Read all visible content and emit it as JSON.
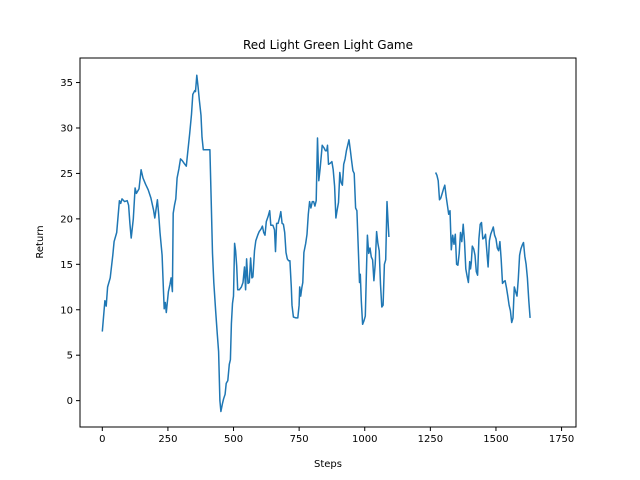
{
  "chart_data": {
    "type": "line",
    "title": "Red Light Green Light Game",
    "xlabel": "Steps",
    "ylabel": "Return",
    "xlim": [
      -85,
      1805
    ],
    "ylim": [
      -2.9,
      37.7
    ],
    "xticks": [
      0,
      250,
      500,
      750,
      1000,
      1250,
      1500,
      1750
    ],
    "yticks": [
      0,
      5,
      10,
      15,
      20,
      25,
      30,
      35
    ],
    "grid": false,
    "legend": "none",
    "series": [
      {
        "color": "#1f77b4",
        "segments": [
          [
            [
              0,
              7.6
            ],
            [
              10,
              11
            ],
            [
              15,
              10.4
            ],
            [
              20,
              12.5
            ],
            [
              30,
              13.5
            ],
            [
              40,
              16
            ],
            [
              45,
              17.5
            ],
            [
              55,
              18.5
            ],
            [
              65,
              22
            ],
            [
              70,
              21.7
            ],
            [
              75,
              22.2
            ],
            [
              85,
              21.9
            ],
            [
              95,
              22
            ],
            [
              100,
              21.5
            ],
            [
              105,
              19.5
            ],
            [
              110,
              17.9
            ],
            [
              118,
              20
            ],
            [
              125,
              23.4
            ],
            [
              130,
              22.8
            ],
            [
              140,
              23.3
            ],
            [
              148,
              25.4
            ],
            [
              155,
              24.5
            ],
            [
              165,
              23.8
            ],
            [
              175,
              23.2
            ],
            [
              185,
              22.3
            ],
            [
              195,
              21
            ],
            [
              200,
              20.1
            ],
            [
              210,
              22.1
            ],
            [
              215,
              20.5
            ],
            [
              220,
              18.5
            ],
            [
              228,
              16
            ],
            [
              233,
              12
            ],
            [
              236,
              10.1
            ],
            [
              240,
              10.8
            ],
            [
              244,
              9.7
            ],
            [
              248,
              10.9
            ],
            [
              252,
              12
            ],
            [
              258,
              12.8
            ],
            [
              262,
              13.5
            ],
            [
              267,
              12
            ],
            [
              270,
              20.6
            ],
            [
              275,
              21.5
            ],
            [
              280,
              22.2
            ],
            [
              285,
              24.5
            ],
            [
              292,
              25.5
            ],
            [
              298,
              26.6
            ],
            [
              305,
              26.4
            ],
            [
              312,
              26.1
            ],
            [
              320,
              25.8
            ],
            [
              325,
              27.2
            ],
            [
              333,
              29.4
            ],
            [
              340,
              31.5
            ],
            [
              345,
              33.7
            ],
            [
              352,
              34.1
            ],
            [
              355,
              34
            ],
            [
              360,
              35.8
            ],
            [
              365,
              34.5
            ],
            [
              370,
              33
            ],
            [
              376,
              31.4
            ],
            [
              380,
              29
            ],
            [
              385,
              27.6
            ],
            [
              390,
              27.6
            ],
            [
              400,
              27.6
            ],
            [
              410,
              27.6
            ],
            [
              415,
              22
            ],
            [
              420,
              16.2
            ],
            [
              425,
              13
            ],
            [
              432,
              9.8
            ],
            [
              438,
              7.3
            ],
            [
              443,
              5.4
            ],
            [
              448,
              0
            ],
            [
              452,
              -1.2
            ],
            [
              458,
              -0.3
            ],
            [
              462,
              0.2
            ],
            [
              468,
              0.7
            ],
            [
              472,
              1.9
            ],
            [
              478,
              2.2
            ],
            [
              484,
              4
            ],
            [
              488,
              4.5
            ],
            [
              492,
              8.5
            ],
            [
              496,
              10.7
            ],
            [
              500,
              11.5
            ],
            [
              504,
              17.3
            ],
            [
              508,
              16.5
            ],
            [
              512,
              14.8
            ],
            [
              516,
              12.2
            ],
            [
              522,
              12.2
            ],
            [
              530,
              12.5
            ],
            [
              536,
              13
            ],
            [
              542,
              14.7
            ],
            [
              546,
              12.2
            ],
            [
              550,
              15.6
            ],
            [
              555,
              12.9
            ],
            [
              560,
              13
            ],
            [
              565,
              15.7
            ],
            [
              570,
              13.5
            ],
            [
              574,
              13.6
            ],
            [
              580,
              16.5
            ],
            [
              585,
              17.6
            ],
            [
              592,
              18.2
            ],
            [
              598,
              18.6
            ],
            [
              605,
              18.9
            ],
            [
              610,
              19.2
            ],
            [
              615,
              18.5
            ],
            [
              620,
              18.2
            ],
            [
              625,
              19.7
            ],
            [
              632,
              20.3
            ],
            [
              638,
              20.9
            ],
            [
              642,
              19.3
            ],
            [
              650,
              19.3
            ],
            [
              656,
              18.8
            ],
            [
              660,
              16.4
            ],
            [
              664,
              19.5
            ],
            [
              670,
              19.5
            ],
            [
              676,
              20.2
            ],
            [
              680,
              20.8
            ],
            [
              685,
              19.5
            ],
            [
              690,
              19.4
            ],
            [
              695,
              18.5
            ],
            [
              700,
              16.3
            ],
            [
              705,
              15.6
            ],
            [
              710,
              15.4
            ],
            [
              715,
              15.4
            ],
            [
              720,
              12.5
            ],
            [
              723,
              10.5
            ],
            [
              728,
              9.2
            ],
            [
              738,
              9.1
            ],
            [
              745,
              9.1
            ],
            [
              750,
              10.5
            ],
            [
              752,
              12.5
            ],
            [
              756,
              11.5
            ],
            [
              760,
              12.4
            ],
            [
              764,
              13
            ],
            [
              768,
              16.3
            ],
            [
              775,
              17.3
            ],
            [
              780,
              18.3
            ],
            [
              785,
              20.5
            ],
            [
              790,
              21.9
            ],
            [
              795,
              21.2
            ],
            [
              800,
              21.9
            ],
            [
              805,
              21.9
            ],
            [
              810,
              21.4
            ],
            [
              815,
              22
            ],
            [
              820,
              28.9
            ],
            [
              825,
              24.2
            ],
            [
              830,
              25.5
            ],
            [
              838,
              28.1
            ],
            [
              845,
              27.8
            ],
            [
              850,
              27.5
            ],
            [
              855,
              27.5
            ],
            [
              858,
              28.1
            ],
            [
              862,
              26
            ],
            [
              868,
              26.1
            ],
            [
              875,
              26.3
            ],
            [
              880,
              25.4
            ],
            [
              885,
              23.6
            ],
            [
              890,
              20.1
            ],
            [
              895,
              21
            ],
            [
              900,
              21.8
            ],
            [
              905,
              25.1
            ],
            [
              910,
              24
            ],
            [
              915,
              23.7
            ],
            [
              920,
              26
            ],
            [
              925,
              26.6
            ],
            [
              930,
              27.5
            ],
            [
              935,
              28.1
            ],
            [
              940,
              28.7
            ],
            [
              945,
              27.6
            ],
            [
              950,
              26.4
            ],
            [
              955,
              25.3
            ],
            [
              960,
              25
            ],
            [
              965,
              21.2
            ],
            [
              970,
              20.9
            ],
            [
              975,
              17
            ],
            [
              980,
              13
            ],
            [
              983,
              13.9
            ],
            [
              987,
              11
            ],
            [
              992,
              8.4
            ],
            [
              997,
              8.8
            ],
            [
              1002,
              9.3
            ],
            [
              1007,
              14.9
            ],
            [
              1010,
              18.2
            ],
            [
              1015,
              16.2
            ],
            [
              1020,
              16.8
            ],
            [
              1025,
              15.8
            ],
            [
              1030,
              15.5
            ],
            [
              1035,
              13.2
            ],
            [
              1040,
              15
            ],
            [
              1045,
              18.6
            ],
            [
              1050,
              17.3
            ],
            [
              1055,
              16.5
            ],
            [
              1060,
              12.8
            ],
            [
              1065,
              10.3
            ],
            [
              1070,
              10.5
            ],
            [
              1075,
              15
            ],
            [
              1080,
              15.5
            ],
            [
              1085,
              21.9
            ],
            [
              1090,
              19
            ],
            [
              1092,
              18
            ]
          ],
          [
            [
              1270,
              25.1
            ],
            [
              1275,
              24.8
            ],
            [
              1280,
              24.2
            ],
            [
              1285,
              22.1
            ],
            [
              1290,
              22.3
            ],
            [
              1295,
              22.8
            ],
            [
              1300,
              23.3
            ],
            [
              1305,
              23.7
            ],
            [
              1310,
              22.5
            ],
            [
              1315,
              21.5
            ],
            [
              1320,
              20.5
            ],
            [
              1325,
              20.9
            ],
            [
              1330,
              16.6
            ],
            [
              1335,
              18.2
            ],
            [
              1340,
              17.2
            ],
            [
              1345,
              18.3
            ],
            [
              1350,
              15
            ],
            [
              1355,
              14.9
            ],
            [
              1360,
              16.2
            ],
            [
              1365,
              18.5
            ],
            [
              1370,
              17.5
            ],
            [
              1375,
              19.4
            ],
            [
              1380,
              17.5
            ],
            [
              1385,
              14.5
            ],
            [
              1390,
              13.7
            ],
            [
              1395,
              13
            ],
            [
              1400,
              15.3
            ],
            [
              1403,
              14.5
            ],
            [
              1406,
              15.2
            ],
            [
              1410,
              17
            ],
            [
              1415,
              16.7
            ],
            [
              1420,
              16
            ],
            [
              1425,
              14.2
            ],
            [
              1430,
              13.8
            ],
            [
              1435,
              17.8
            ],
            [
              1440,
              19.4
            ],
            [
              1445,
              19.6
            ],
            [
              1450,
              17.8
            ],
            [
              1455,
              17.9
            ],
            [
              1460,
              18.3
            ],
            [
              1465,
              16.5
            ],
            [
              1470,
              14.7
            ],
            [
              1475,
              17.6
            ],
            [
              1480,
              18.3
            ],
            [
              1485,
              18.7
            ],
            [
              1490,
              19.1
            ],
            [
              1495,
              18.2
            ],
            [
              1500,
              17.8
            ],
            [
              1505,
              16.8
            ],
            [
              1510,
              16.5
            ],
            [
              1515,
              17.5
            ],
            [
              1520,
              15.5
            ],
            [
              1525,
              12.9
            ],
            [
              1530,
              13.1
            ],
            [
              1535,
              13.2
            ],
            [
              1540,
              12.4
            ],
            [
              1545,
              11.5
            ],
            [
              1550,
              10.5
            ],
            [
              1555,
              9.9
            ],
            [
              1560,
              8.6
            ],
            [
              1565,
              9.1
            ],
            [
              1570,
              12.5
            ],
            [
              1575,
              12
            ],
            [
              1580,
              11.5
            ],
            [
              1585,
              13.4
            ],
            [
              1590,
              16
            ],
            [
              1595,
              16.7
            ],
            [
              1600,
              17.1
            ],
            [
              1605,
              17.4
            ],
            [
              1610,
              15.9
            ],
            [
              1615,
              15
            ],
            [
              1620,
              13.5
            ],
            [
              1625,
              11
            ],
            [
              1630,
              9.1
            ]
          ]
        ]
      }
    ]
  }
}
